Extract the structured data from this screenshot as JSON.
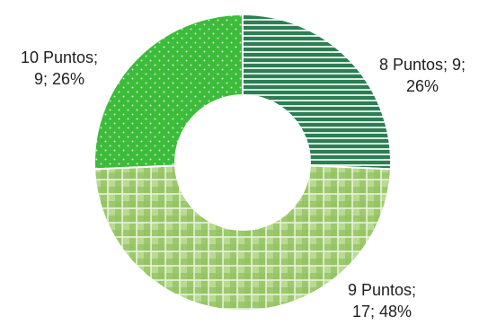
{
  "chart_data": {
    "type": "pie",
    "variant": "doughnut",
    "title": "",
    "slices": [
      {
        "category": "8 Puntos",
        "value": 9,
        "percent": "26%",
        "color": "#3a8f62",
        "pattern": "horizontal-stripes",
        "label_lines": [
          "8 Puntos; 9;",
          "26%"
        ]
      },
      {
        "category": "9 Puntos",
        "value": 17,
        "percent": "48%",
        "color": "#9ecb6e",
        "pattern": "gingham",
        "label_lines": [
          "9 Puntos;",
          "17; 48%"
        ]
      },
      {
        "category": "10 Puntos",
        "value": 9,
        "percent": "26%",
        "color": "#3fbf3a",
        "pattern": "dots",
        "label_lines": [
          "10 Puntos;",
          "9; 26%"
        ]
      }
    ],
    "legend": "none",
    "start_angle_deg": 0,
    "direction": "clockwise"
  }
}
